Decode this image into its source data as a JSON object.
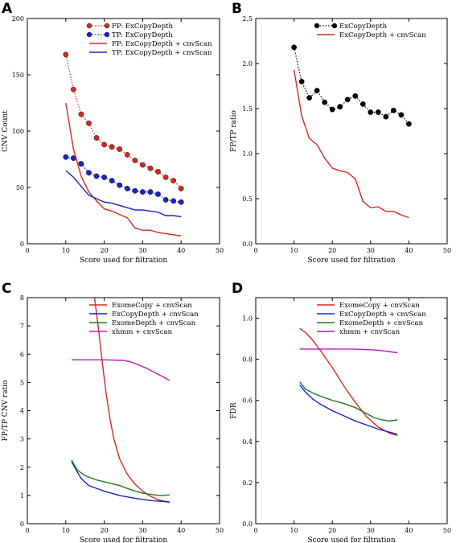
{
  "chart_data": [
    {
      "panel": "A",
      "type": "line",
      "xlabel": "Score used for filtration",
      "ylabel": "CNV Count",
      "xlim": [
        0,
        50
      ],
      "ylim": [
        0,
        200
      ],
      "xticks": [
        "0",
        "10",
        "20",
        "30",
        "40",
        "50"
      ],
      "yticks": [
        "0",
        "50",
        "100",
        "150",
        "200"
      ],
      "legend_position": "top-right",
      "series": [
        {
          "name": "FP: ExCopyDepth",
          "color": "#cc2a1e",
          "style": "dotted-marker",
          "x": [
            10,
            12,
            14,
            16,
            18,
            20,
            22,
            24,
            26,
            28,
            30,
            32,
            34,
            36,
            38,
            40
          ],
          "y": [
            168,
            137,
            115,
            107,
            94,
            88,
            86,
            84,
            79,
            74,
            70,
            67,
            64,
            59,
            56,
            49
          ]
        },
        {
          "name": "TP: ExCopyDepth",
          "color": "#1a22c8",
          "style": "dotted-marker",
          "x": [
            10,
            12,
            14,
            16,
            18,
            20,
            22,
            24,
            26,
            28,
            30,
            32,
            34,
            36,
            38,
            40
          ],
          "y": [
            77,
            76,
            71,
            63,
            60,
            59,
            56,
            52,
            49,
            47,
            46,
            46,
            44,
            39,
            38,
            37
          ]
        },
        {
          "name": "FP: ExCopyDepth + cnvScan",
          "color": "#d62a1e",
          "style": "solid",
          "x": [
            10,
            12,
            14,
            16,
            18,
            20,
            22,
            24,
            26,
            28,
            30,
            32,
            34,
            36,
            38,
            40
          ],
          "y": [
            125,
            84,
            60,
            46,
            38,
            31,
            29,
            26,
            23,
            14,
            12,
            12,
            10,
            9,
            8,
            7
          ]
        },
        {
          "name": "TP: ExCopyDepth + cnvScan",
          "color": "#1a22c8",
          "style": "solid",
          "x": [
            10,
            12,
            14,
            16,
            18,
            20,
            22,
            24,
            26,
            28,
            30,
            32,
            34,
            36,
            38,
            40
          ],
          "y": [
            65,
            59,
            51,
            43,
            40,
            37,
            36,
            34,
            32,
            30,
            30,
            29,
            28,
            25,
            25,
            24
          ]
        }
      ]
    },
    {
      "panel": "B",
      "type": "line",
      "xlabel": "Score used for filtration",
      "ylabel": "FP/TP ratio",
      "xlim": [
        0,
        50
      ],
      "ylim": [
        0,
        2.5
      ],
      "xticks": [
        "0",
        "10",
        "20",
        "30",
        "40",
        "50"
      ],
      "yticks": [
        "0.0",
        "0.5",
        "1.0",
        "1.5",
        "2.0",
        "2.5"
      ],
      "legend_position": "top-right",
      "series": [
        {
          "name": "ExCopyDepth",
          "color": "#000000",
          "style": "dotted-marker",
          "x": [
            10,
            12,
            14,
            16,
            18,
            20,
            22,
            24,
            26,
            28,
            30,
            32,
            34,
            36,
            38,
            40
          ],
          "y": [
            2.18,
            1.8,
            1.62,
            1.7,
            1.57,
            1.49,
            1.52,
            1.6,
            1.64,
            1.55,
            1.46,
            1.46,
            1.41,
            1.48,
            1.43,
            1.33
          ]
        },
        {
          "name": "ExCopyDepth + cnvScan",
          "color": "#d62a1e",
          "style": "solid",
          "x": [
            10,
            12,
            14,
            16,
            18,
            20,
            22,
            24,
            26,
            28,
            30,
            32,
            34,
            36,
            38,
            40
          ],
          "y": [
            1.93,
            1.42,
            1.17,
            1.1,
            0.95,
            0.84,
            0.81,
            0.79,
            0.72,
            0.47,
            0.4,
            0.41,
            0.36,
            0.36,
            0.32,
            0.29
          ]
        }
      ]
    },
    {
      "panel": "C",
      "type": "line",
      "xlabel": "Score used for filtration",
      "ylabel": "FP/TP CNV ratio",
      "xlim": [
        0,
        50
      ],
      "ylim": [
        0,
        8
      ],
      "xticks": [
        "0",
        "10",
        "20",
        "30",
        "40",
        "50"
      ],
      "yticks": [
        "0",
        "1",
        "2",
        "3",
        "4",
        "5",
        "6",
        "7",
        "8"
      ],
      "legend_position": "top-right",
      "series": [
        {
          "name": "ExomeCopy + cnvScan",
          "color": "#d62a1e",
          "style": "solid",
          "x": [
            17.5,
            18.5,
            19.5,
            20.5,
            21.5,
            22.5,
            24,
            26,
            28,
            30,
            32,
            34,
            37
          ],
          "y": [
            8,
            6.9,
            5.7,
            4.6,
            3.7,
            3.0,
            2.3,
            1.75,
            1.4,
            1.15,
            0.97,
            0.85,
            0.75
          ]
        },
        {
          "name": "ExCopyDepth + cnvScan",
          "color": "#1a22c8",
          "style": "solid",
          "x": [
            11.5,
            12.5,
            14,
            16,
            18,
            20,
            24,
            28,
            32,
            34,
            37
          ],
          "y": [
            2.2,
            1.95,
            1.6,
            1.35,
            1.25,
            1.15,
            1.0,
            0.9,
            0.82,
            0.8,
            0.77
          ]
        },
        {
          "name": "ExomeDepth + cnvScan",
          "color": "#1c7a1c",
          "style": "solid",
          "x": [
            11.5,
            13,
            15,
            18,
            21,
            24,
            27,
            30,
            33,
            35,
            37
          ],
          "y": [
            2.25,
            1.9,
            1.7,
            1.55,
            1.45,
            1.35,
            1.2,
            1.08,
            1.02,
            1.0,
            1.02
          ]
        },
        {
          "name": "xhmm + cnvScan",
          "color": "#b81ab8",
          "style": "solid",
          "x": [
            11.5,
            15,
            20,
            25,
            27,
            29,
            31,
            33,
            35,
            37
          ],
          "y": [
            5.8,
            5.8,
            5.8,
            5.78,
            5.72,
            5.62,
            5.5,
            5.36,
            5.22,
            5.07
          ]
        }
      ]
    },
    {
      "panel": "D",
      "type": "line",
      "xlabel": "Score used for filtration",
      "ylabel": "FDR",
      "xlim": [
        0,
        50
      ],
      "ylim": [
        0,
        1.1
      ],
      "xticks": [
        "0",
        "10",
        "20",
        "30",
        "40",
        "50"
      ],
      "yticks": [
        "0.0",
        "0.2",
        "0.4",
        "0.6",
        "0.8",
        "1.0"
      ],
      "legend_position": "top-right",
      "series": [
        {
          "name": "ExomeCopy + cnvScan",
          "color": "#d62a1e",
          "style": "solid",
          "x": [
            11.5,
            13,
            15,
            17,
            20,
            23,
            26,
            29,
            32,
            35,
            37
          ],
          "y": [
            0.95,
            0.93,
            0.89,
            0.84,
            0.76,
            0.67,
            0.59,
            0.52,
            0.47,
            0.44,
            0.43
          ]
        },
        {
          "name": "ExCopyDepth + cnvScan",
          "color": "#1a22c8",
          "style": "solid",
          "x": [
            11.5,
            13,
            15,
            17,
            20,
            23,
            26,
            29,
            32,
            35,
            37
          ],
          "y": [
            0.675,
            0.64,
            0.605,
            0.58,
            0.55,
            0.525,
            0.5,
            0.48,
            0.46,
            0.445,
            0.435
          ]
        },
        {
          "name": "ExomeDepth + cnvScan",
          "color": "#1c7a1c",
          "style": "solid",
          "x": [
            11.5,
            13,
            15,
            17,
            20,
            23,
            26,
            29,
            31,
            33,
            35,
            37
          ],
          "y": [
            0.69,
            0.655,
            0.635,
            0.62,
            0.6,
            0.585,
            0.565,
            0.535,
            0.515,
            0.505,
            0.5,
            0.505
          ]
        },
        {
          "name": "xhmm + cnvScan",
          "color": "#b81ab8",
          "style": "solid",
          "x": [
            11.5,
            15,
            20,
            25,
            28,
            31,
            34,
            37
          ],
          "y": [
            0.85,
            0.85,
            0.85,
            0.85,
            0.848,
            0.845,
            0.84,
            0.832
          ]
        }
      ]
    }
  ]
}
